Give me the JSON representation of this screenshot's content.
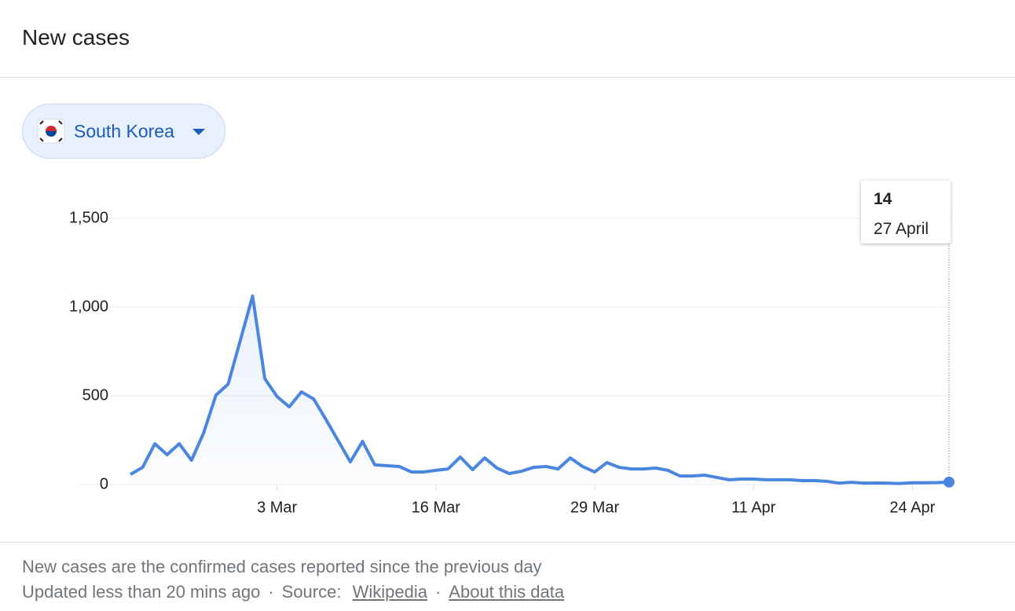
{
  "header": {
    "title": "New cases"
  },
  "selector": {
    "label": "South Korea"
  },
  "chart_data": {
    "type": "line",
    "x": [
      "20 Feb",
      "21 Feb",
      "22 Feb",
      "23 Feb",
      "24 Feb",
      "25 Feb",
      "26 Feb",
      "27 Feb",
      "28 Feb",
      "29 Feb",
      "1 Mar",
      "2 Mar",
      "3 Mar",
      "4 Mar",
      "5 Mar",
      "6 Mar",
      "7 Mar",
      "8 Mar",
      "9 Mar",
      "10 Mar",
      "11 Mar",
      "12 Mar",
      "13 Mar",
      "14 Mar",
      "15 Mar",
      "16 Mar",
      "17 Mar",
      "18 Mar",
      "19 Mar",
      "20 Mar",
      "21 Mar",
      "22 Mar",
      "23 Mar",
      "24 Mar",
      "25 Mar",
      "26 Mar",
      "27 Mar",
      "28 Mar",
      "29 Mar",
      "30 Mar",
      "31 Mar",
      "1 Apr",
      "2 Apr",
      "3 Apr",
      "4 Apr",
      "5 Apr",
      "6 Apr",
      "7 Apr",
      "8 Apr",
      "9 Apr",
      "10 Apr",
      "11 Apr",
      "12 Apr",
      "13 Apr",
      "14 Apr",
      "15 Apr",
      "16 Apr",
      "17 Apr",
      "18 Apr",
      "19 Apr",
      "20 Apr",
      "21 Apr",
      "22 Apr",
      "23 Apr",
      "24 Apr",
      "25 Apr",
      "26 Apr",
      "27 Apr"
    ],
    "values": [
      57,
      97,
      230,
      168,
      230,
      137,
      292,
      504,
      566,
      814,
      1062,
      597,
      496,
      438,
      522,
      482,
      367,
      248,
      128,
      243,
      111,
      106,
      102,
      71,
      71,
      80,
      88,
      155,
      84,
      150,
      93,
      62,
      75,
      97,
      102,
      88,
      150,
      102,
      71,
      124,
      97,
      88,
      88,
      93,
      80,
      48,
      48,
      53,
      40,
      27,
      31,
      31,
      27,
      27,
      27,
      22,
      22,
      18,
      8,
      13,
      8,
      9,
      8,
      6,
      10,
      10,
      11,
      14
    ],
    "color": "#4a86e0",
    "ylim": [
      0,
      1500
    ],
    "yticks": [
      {
        "value": 0,
        "label": "0"
      },
      500,
      {
        "value": 1000,
        "label": "1,000"
      },
      {
        "value": 1500,
        "label": "1,500"
      }
    ],
    "xticks": [
      "3 Mar",
      "16 Mar",
      "29 Mar",
      "11 Apr",
      "24 Apr"
    ],
    "grid": true,
    "annotation": "27 April"
  },
  "footer": {
    "note": "New cases are the confirmed cases reported since the previous day",
    "updated": "Updated less than 20 mins ago",
    "separator": "·",
    "source_label": "Source:",
    "source_link": "Wikipedia",
    "about_link": "About this data"
  }
}
